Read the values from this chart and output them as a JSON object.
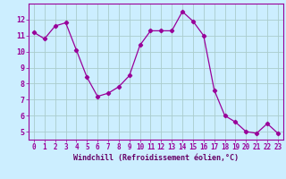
{
  "x": [
    0,
    1,
    2,
    3,
    4,
    5,
    6,
    7,
    8,
    9,
    10,
    11,
    12,
    13,
    14,
    15,
    16,
    17,
    18,
    19,
    20,
    21,
    22,
    23
  ],
  "y": [
    11.2,
    10.8,
    11.6,
    11.8,
    10.1,
    8.4,
    7.2,
    7.4,
    7.8,
    8.5,
    10.4,
    11.3,
    11.3,
    11.3,
    12.5,
    11.9,
    11.0,
    7.6,
    6.0,
    5.6,
    5.0,
    4.9,
    5.5,
    4.9
  ],
  "line_color": "#990099",
  "marker": "D",
  "marker_size": 2.2,
  "bg_color": "#cceeff",
  "grid_color": "#aacccc",
  "xlabel": "Windchill (Refroidissement éolien,°C)",
  "xlabel_color": "#660066",
  "tick_color": "#990099",
  "ylim": [
    4.5,
    13.0
  ],
  "xlim": [
    -0.5,
    23.5
  ],
  "yticks": [
    5,
    6,
    7,
    8,
    9,
    10,
    11,
    12
  ],
  "xticks": [
    0,
    1,
    2,
    3,
    4,
    5,
    6,
    7,
    8,
    9,
    10,
    11,
    12,
    13,
    14,
    15,
    16,
    17,
    18,
    19,
    20,
    21,
    22,
    23
  ]
}
